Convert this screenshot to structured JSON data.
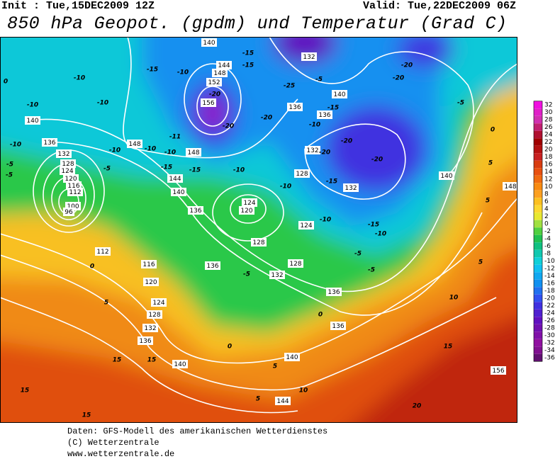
{
  "header": {
    "init": "Init : Tue,15DEC2009 12Z",
    "valid": "Valid: Tue,22DEC2009 06Z",
    "title": "850 hPa Geopot. (gpdm) und Temperatur (Grad C)"
  },
  "map": {
    "geopotential_labels": [
      "140",
      "144",
      "148",
      "152",
      "156",
      "132",
      "140",
      "136",
      "136",
      "140",
      "136",
      "148",
      "148",
      "144",
      "140",
      "132",
      "128",
      "124",
      "120",
      "116",
      "112",
      "100",
      "96",
      "136",
      "124",
      "120",
      "128",
      "132",
      "132",
      "124",
      "128",
      "128",
      "132",
      "136",
      "136",
      "112",
      "116",
      "120",
      "124",
      "128",
      "132",
      "136",
      "140",
      "140",
      "144",
      "136",
      "140",
      "148",
      "156"
    ],
    "temperature_labels": [
      "0",
      "-10",
      "-10",
      "-10",
      "-10",
      "-5",
      "-5",
      "-5",
      "-10",
      "-10",
      "-10",
      "-11",
      "-15",
      "-10",
      "-15",
      "-15",
      "-20",
      "-20",
      "-20",
      "-25",
      "-15",
      "-15",
      "-10",
      "-5",
      "-15",
      "-10",
      "-20",
      "-20",
      "-20",
      "-20",
      "-20",
      "-15",
      "-10",
      "-10",
      "-15",
      "-10",
      "-5",
      "-5",
      "-5",
      "0",
      "5",
      "0",
      "0",
      "5",
      "10",
      "5",
      "15",
      "15",
      "15",
      "15",
      "20",
      "15",
      "10",
      "5",
      "-5",
      "0",
      "5",
      "5"
    ]
  },
  "colorbar": {
    "levels": [
      32,
      30,
      28,
      26,
      24,
      22,
      20,
      18,
      16,
      14,
      12,
      10,
      8,
      6,
      4,
      2,
      0,
      -2,
      -4,
      -6,
      -8,
      -10,
      -12,
      -14,
      -16,
      -18,
      -20,
      -22,
      -24,
      -26,
      -28,
      -30,
      -32,
      -34,
      -36
    ],
    "colors": [
      "#f010e0",
      "#e020c8",
      "#d030b0",
      "#c02070",
      "#b01030",
      "#a00000",
      "#b41010",
      "#c82020",
      "#d83c10",
      "#e85010",
      "#f06a10",
      "#f88a10",
      "#fca020",
      "#fcc020",
      "#fcd830",
      "#e8e830",
      "#a0e040",
      "#50d040",
      "#20c050",
      "#10c080",
      "#10c8b0",
      "#10d0d8",
      "#10c0f0",
      "#10a8f0",
      "#1090f0",
      "#2070f0",
      "#3050f0",
      "#4030e0",
      "#5020d0",
      "#6010c0",
      "#7010b0",
      "#8010a8",
      "#9010a0",
      "#801090",
      "#601070"
    ]
  },
  "footer": {
    "lines": [
      "Daten: GFS-Modell des amerikanischen Wetterdienstes",
      "(C) Wetterzentrale",
      "www.wetterzentrale.de"
    ]
  }
}
